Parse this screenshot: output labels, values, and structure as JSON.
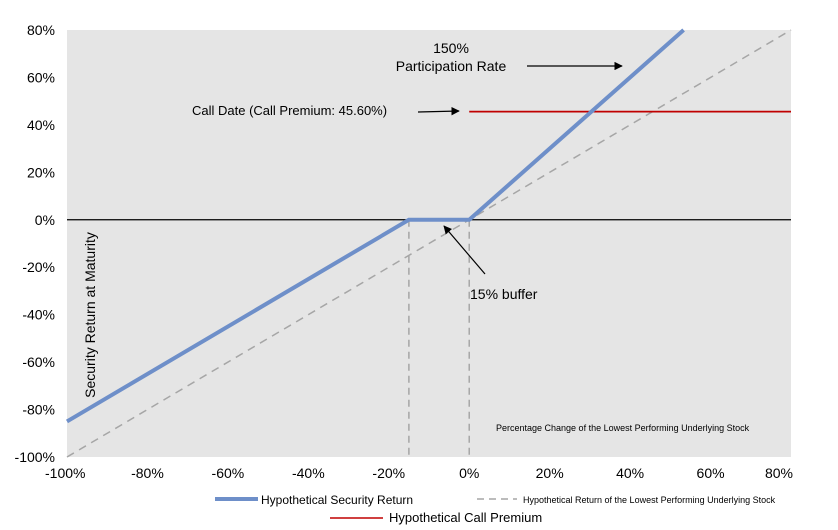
{
  "chart_data": {
    "type": "line",
    "title": "",
    "xlabel": "Percentage Change of the Lowest Performing Underlying Stock",
    "ylabel": "Security Return at Maturity",
    "xlim": [
      -100,
      80
    ],
    "ylim": [
      -100,
      80
    ],
    "x_ticks": [
      "-100%",
      "-80%",
      "-60%",
      "-40%",
      "-20%",
      "0%",
      "20%",
      "40%",
      "60%",
      "80%"
    ],
    "y_ticks": [
      "80%",
      "60%",
      "40%",
      "20%",
      "0%",
      "-20%",
      "-40%",
      "-60%",
      "-80%",
      "-100%"
    ],
    "grid": false,
    "legend_position": "bottom",
    "series": [
      {
        "name": "Hypothetical Security Return",
        "color": "#6e8fc9",
        "style": "solid",
        "x": [
          -100,
          -15,
          0,
          53.3
        ],
        "y": [
          -85,
          0,
          0,
          80
        ]
      },
      {
        "name": "Hypothetical Return of the Lowest Performing Underlying Stock",
        "color": "#a6a6a6",
        "style": "dashed",
        "x": [
          -100,
          80
        ],
        "y": [
          -100,
          80
        ]
      },
      {
        "name": "Hypothetical Call Premium",
        "color": "#c00000",
        "style": "solid",
        "x": [
          0,
          80
        ],
        "y": [
          45.6,
          45.6
        ]
      }
    ],
    "annotations": {
      "participation": [
        "150%",
        "Participation Rate"
      ],
      "call_date": "Call Date (Call Premium: 45.60%)",
      "buffer": "15% buffer"
    }
  }
}
